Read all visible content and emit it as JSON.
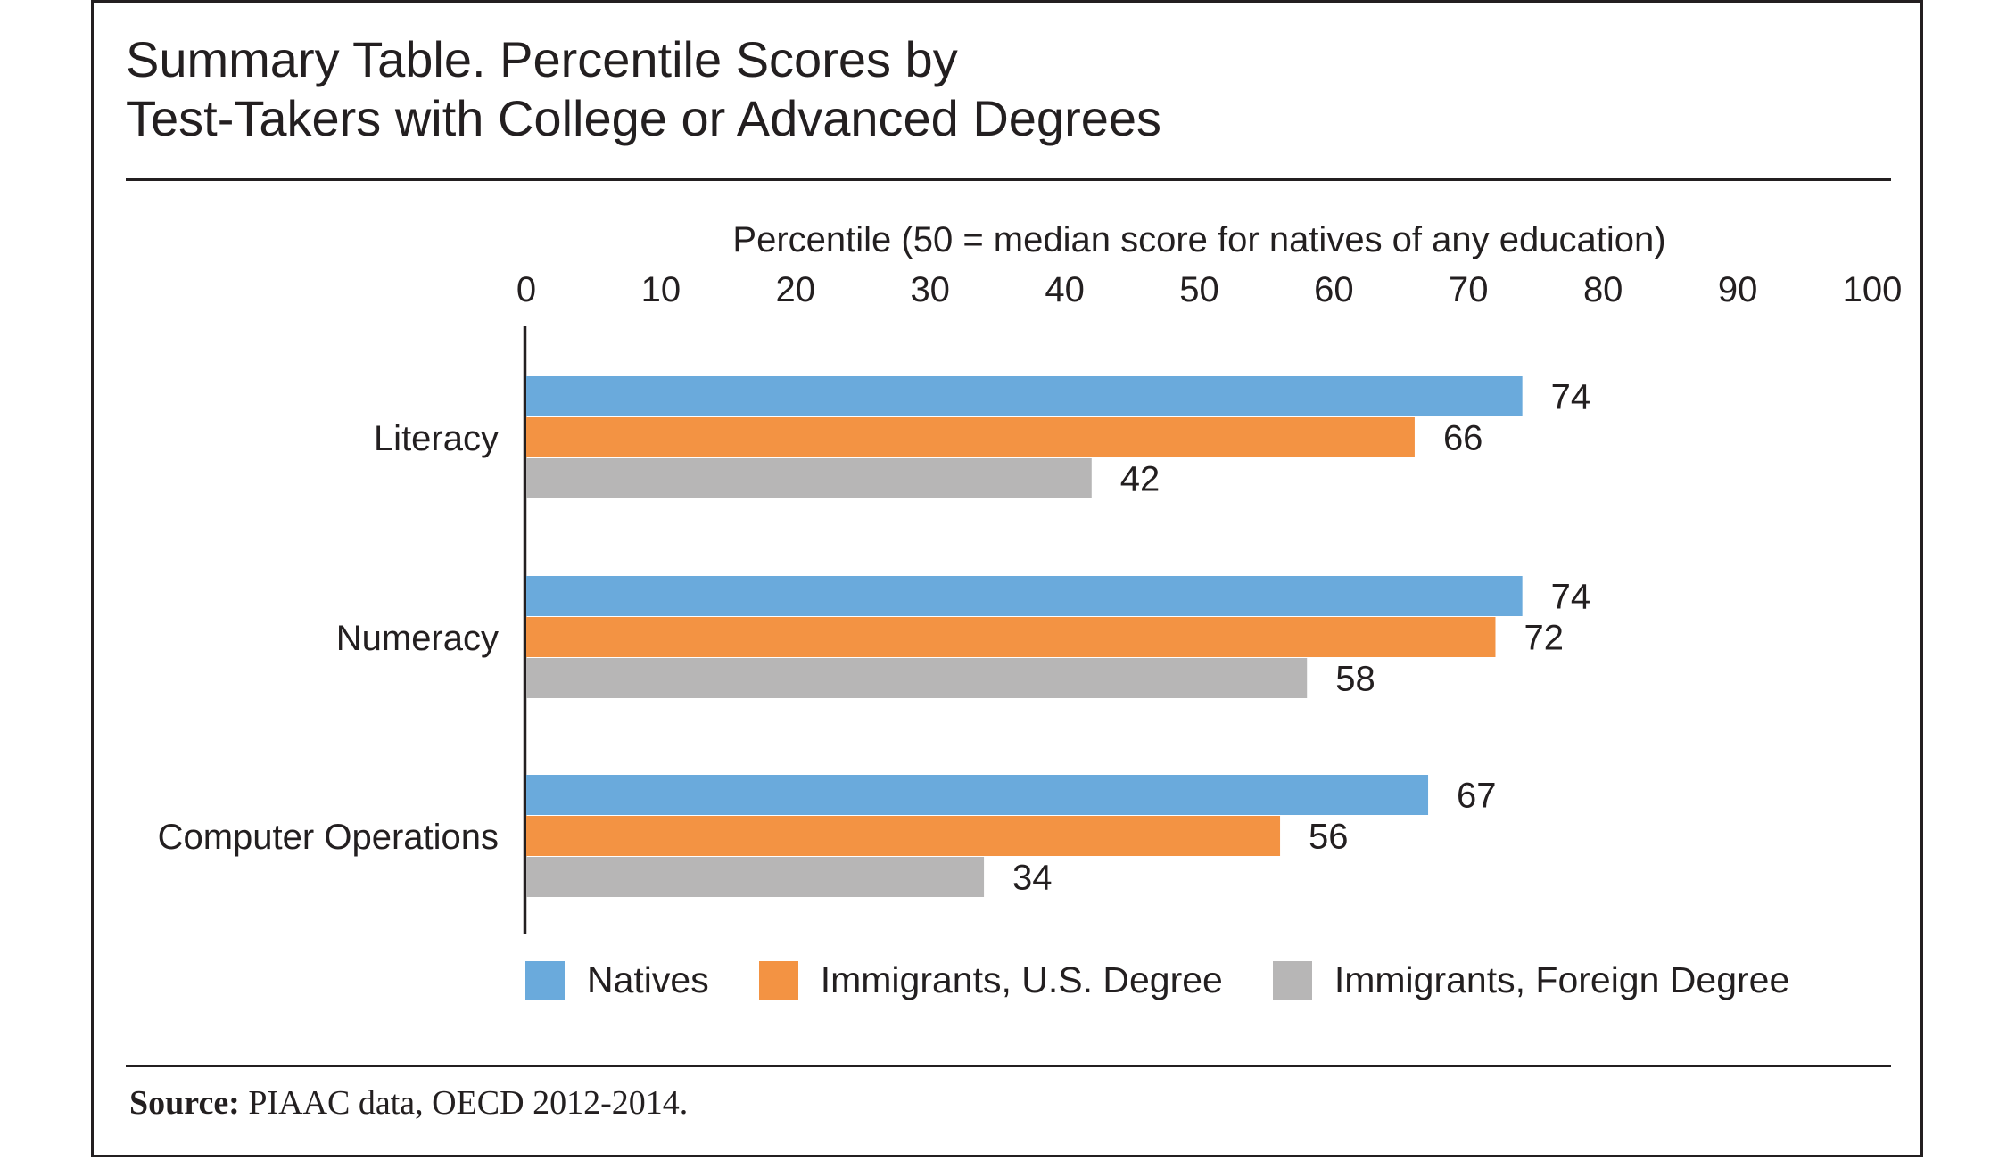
{
  "title_lines": [
    "Summary Table. Percentile Scores by",
    "Test-Takers with College or Advanced Degrees"
  ],
  "source": {
    "label": "Source:",
    "text": " PIAAC data, OECD 2012-2014."
  },
  "chart_data": {
    "type": "bar",
    "orientation": "horizontal",
    "title": "Summary Table. Percentile Scores by Test-Takers with College or Advanced Degrees",
    "xlabel": "Percentile (50 = median score for natives of any education)",
    "ylabel": "",
    "xlim": [
      0,
      100
    ],
    "ticks": [
      0,
      10,
      20,
      30,
      40,
      50,
      60,
      70,
      80,
      90,
      100
    ],
    "categories": [
      "Literacy",
      "Numeracy",
      "Computer Operations"
    ],
    "series": [
      {
        "name": "Natives",
        "color": "#6aaadc",
        "values": [
          74,
          74,
          67
        ]
      },
      {
        "name": "Immigrants, U.S. Degree",
        "color": "#f39343",
        "values": [
          66,
          72,
          56
        ]
      },
      {
        "name": "Immigrants, Foreign Degree",
        "color": "#b7b6b6",
        "values": [
          42,
          58,
          34
        ]
      }
    ],
    "legend_position": "bottom",
    "grid": false
  }
}
